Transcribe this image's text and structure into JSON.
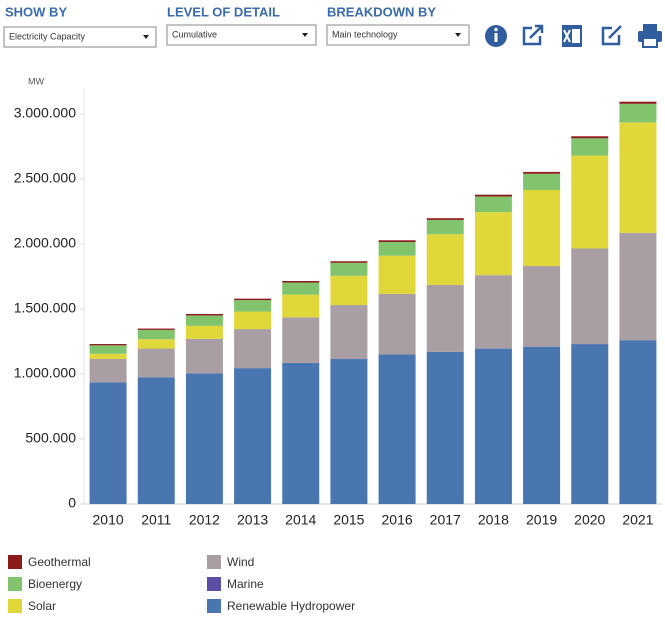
{
  "controls": [
    {
      "label": "SHOW BY",
      "value": "Electricity Capacity"
    },
    {
      "label": "LEVEL OF DETAIL",
      "value": "Cumulative"
    },
    {
      "label": "BREAKDOWN BY",
      "value": "Main technology"
    }
  ],
  "chart_data": {
    "type": "stacked_bar",
    "y_label": "MW",
    "categories": [
      "2010",
      "2011",
      "2012",
      "2013",
      "2014",
      "2015",
      "2016",
      "2017",
      "2018",
      "2019",
      "2020",
      "2021"
    ],
    "series": [
      {
        "name": "Renewable Hydropower",
        "color": "#4a76b0",
        "values": [
          935000,
          975000,
          1005000,
          1045000,
          1085000,
          1115000,
          1150000,
          1170000,
          1195000,
          1210000,
          1230000,
          1260000
        ]
      },
      {
        "name": "Marine",
        "color": "#5b4ea8",
        "values": [
          500,
          500,
          500,
          500,
          500,
          500,
          500,
          500,
          500,
          500,
          500,
          500
        ]
      },
      {
        "name": "Wind",
        "color": "#a89ea3",
        "values": [
          180000,
          220000,
          265000,
          300000,
          350000,
          415000,
          465000,
          515000,
          565000,
          620000,
          735000,
          825000
        ]
      },
      {
        "name": "Solar",
        "color": "#e0d83a",
        "values": [
          40000,
          72000,
          100000,
          135000,
          175000,
          225000,
          295000,
          390000,
          485000,
          585000,
          715000,
          850000
        ]
      },
      {
        "name": "Bioenergy",
        "color": "#82c36e",
        "values": [
          65000,
          72000,
          80000,
          88000,
          93000,
          100000,
          105000,
          110000,
          120000,
          125000,
          133000,
          143000
        ]
      },
      {
        "name": "Geothermal",
        "color": "#8b1a1a",
        "values": [
          10000,
          10000,
          11000,
          11000,
          12000,
          12000,
          13000,
          13000,
          14000,
          14000,
          15000,
          16000
        ]
      }
    ],
    "ylim": [
      0,
      3200000
    ],
    "yticks": [
      0,
      {
        "value": 500000,
        "label": "500.000"
      },
      {
        "value": 1000000,
        "label": "1.000.000"
      },
      {
        "value": 1500000,
        "label": "1.500.000"
      },
      {
        "value": 2000000,
        "label": "2.000.000"
      },
      {
        "value": 2500000,
        "label": "2.500.000"
      },
      {
        "value": 3000000,
        "label": "3.000.000"
      }
    ]
  }
}
